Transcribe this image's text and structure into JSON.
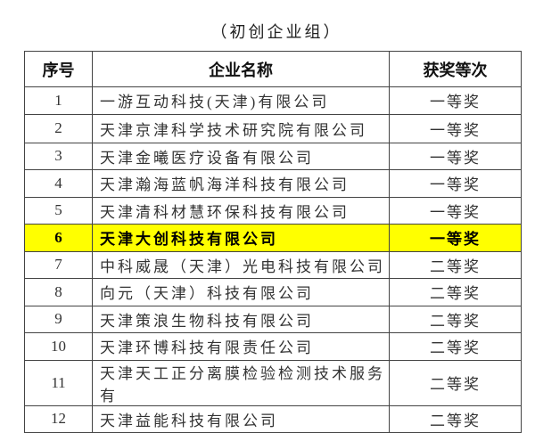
{
  "title": "（初创企业组）",
  "table": {
    "headers": [
      "序号",
      "企业名称",
      "获奖等次"
    ],
    "rows": [
      {
        "no": "1",
        "name": "一游互动科技(天津)有限公司",
        "award": "一等奖"
      },
      {
        "no": "2",
        "name": "天津京津科学技术研究院有限公司",
        "award": "一等奖"
      },
      {
        "no": "3",
        "name": "天津金曦医疗设备有限公司",
        "award": "一等奖"
      },
      {
        "no": "4",
        "name": "天津瀚海蓝帆海洋科技有限公司",
        "award": "一等奖"
      },
      {
        "no": "5",
        "name": "天津清科材慧环保科技有限公司",
        "award": "一等奖"
      },
      {
        "no": "6",
        "name": "天津大创科技有限公司",
        "award": "一等奖",
        "highlighted": true
      },
      {
        "no": "7",
        "name": "中科威晟（天津）光电科技有限公司",
        "award": "二等奖"
      },
      {
        "no": "8",
        "name": "向元（天津）科技有限公司",
        "award": "二等奖"
      },
      {
        "no": "9",
        "name": "天津策浪生物科技有限公司",
        "award": "二等奖"
      },
      {
        "no": "10",
        "name": "天津环博科技有限责任公司",
        "award": "二等奖"
      },
      {
        "no": "11",
        "name": "天津天工正分离膜检验检测技术服务有",
        "award": "二等奖"
      },
      {
        "no": "12",
        "name": "天津益能科技有限公司",
        "award": "二等奖"
      }
    ]
  },
  "colors": {
    "highlight": "#ffff00"
  }
}
